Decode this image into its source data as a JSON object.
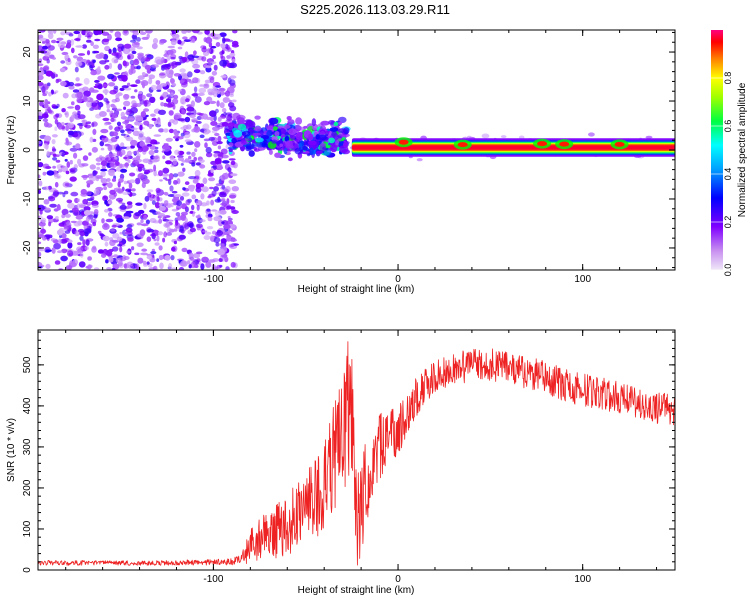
{
  "title": "S225.2026.113.03.29.R11",
  "chart_data": [
    {
      "type": "heatmap",
      "name": "spectrogram",
      "xlabel": "Height of straight line (km)",
      "ylabel": "Frequency (Hz)",
      "xlim": [
        -195,
        150
      ],
      "ylim": [
        -24.5,
        24.5
      ],
      "x_ticks": [
        -100,
        0,
        100
      ],
      "x_tick_labels": [
        "-100",
        "0",
        "100"
      ],
      "y_ticks": [
        -20,
        -10,
        0,
        10,
        20
      ],
      "y_tick_labels": [
        "-20",
        "-10",
        "0",
        "10",
        "20"
      ],
      "colorbar": {
        "label": "Normalized spectral amplitude",
        "range": [
          0.0,
          1.0
        ],
        "ticks": [
          0.0,
          0.2,
          0.4,
          0.6,
          0.8
        ],
        "tick_labels": [
          "0.0",
          "0.2",
          "0.4",
          "0.6",
          "0.8"
        ],
        "colors": [
          "#f0e8f8",
          "#8000ff",
          "#0000ff",
          "#00ffff",
          "#00ff00",
          "#ffff00",
          "#ff8000",
          "#ff0000",
          "#ff0080"
        ]
      },
      "regions": [
        {
          "label": "noise",
          "x_range": [
            -195,
            -92
          ],
          "freq_range": [
            -24.5,
            24.5
          ],
          "amplitude": 0.15
        },
        {
          "label": "onset",
          "x_range": [
            -92,
            -28
          ],
          "freq_range": [
            -7,
            10
          ],
          "amplitude": 0.35
        },
        {
          "label": "carrier",
          "x_range": [
            -25,
            150
          ],
          "freq_center": 0.5,
          "amplitude": 0.9
        }
      ]
    },
    {
      "type": "line",
      "name": "snr",
      "xlabel": "Height of straight line (km)",
      "ylabel": "SNR (10 * v/v)",
      "xlim": [
        -195,
        150
      ],
      "ylim": [
        0,
        585
      ],
      "x_ticks": [
        -100,
        0,
        100
      ],
      "x_tick_labels": [
        "-100",
        "0",
        "100"
      ],
      "y_ticks": [
        0,
        100,
        200,
        300,
        400,
        500
      ],
      "y_tick_labels": [
        "0",
        "100",
        "200",
        "300",
        "400",
        "500"
      ],
      "series": [
        {
          "name": "SNR",
          "color": "#ee2222",
          "x": [
            -195,
            -180,
            -160,
            -140,
            -120,
            -100,
            -90,
            -85,
            -80,
            -70,
            -60,
            -50,
            -40,
            -35,
            -30,
            -27,
            -25,
            -22,
            -20,
            -15,
            -10,
            -5,
            0,
            5,
            10,
            15,
            20,
            30,
            40,
            50,
            60,
            70,
            80,
            90,
            100,
            110,
            120,
            130,
            140,
            150
          ],
          "values": [
            18,
            17,
            18,
            16,
            18,
            19,
            20,
            28,
            60,
            85,
            110,
            150,
            200,
            260,
            330,
            420,
            380,
            120,
            160,
            250,
            300,
            330,
            340,
            380,
            420,
            450,
            470,
            490,
            500,
            500,
            490,
            480,
            470,
            450,
            440,
            430,
            420,
            405,
            395,
            390
          ],
          "noise": [
            6,
            6,
            6,
            6,
            6,
            7,
            8,
            12,
            45,
            60,
            75,
            90,
            110,
            140,
            170,
            190,
            170,
            120,
            120,
            90,
            80,
            70,
            60,
            55,
            50,
            45,
            40,
            40,
            40,
            40,
            40,
            40,
            40,
            40,
            40,
            40,
            40,
            38,
            38,
            38
          ]
        }
      ]
    }
  ]
}
